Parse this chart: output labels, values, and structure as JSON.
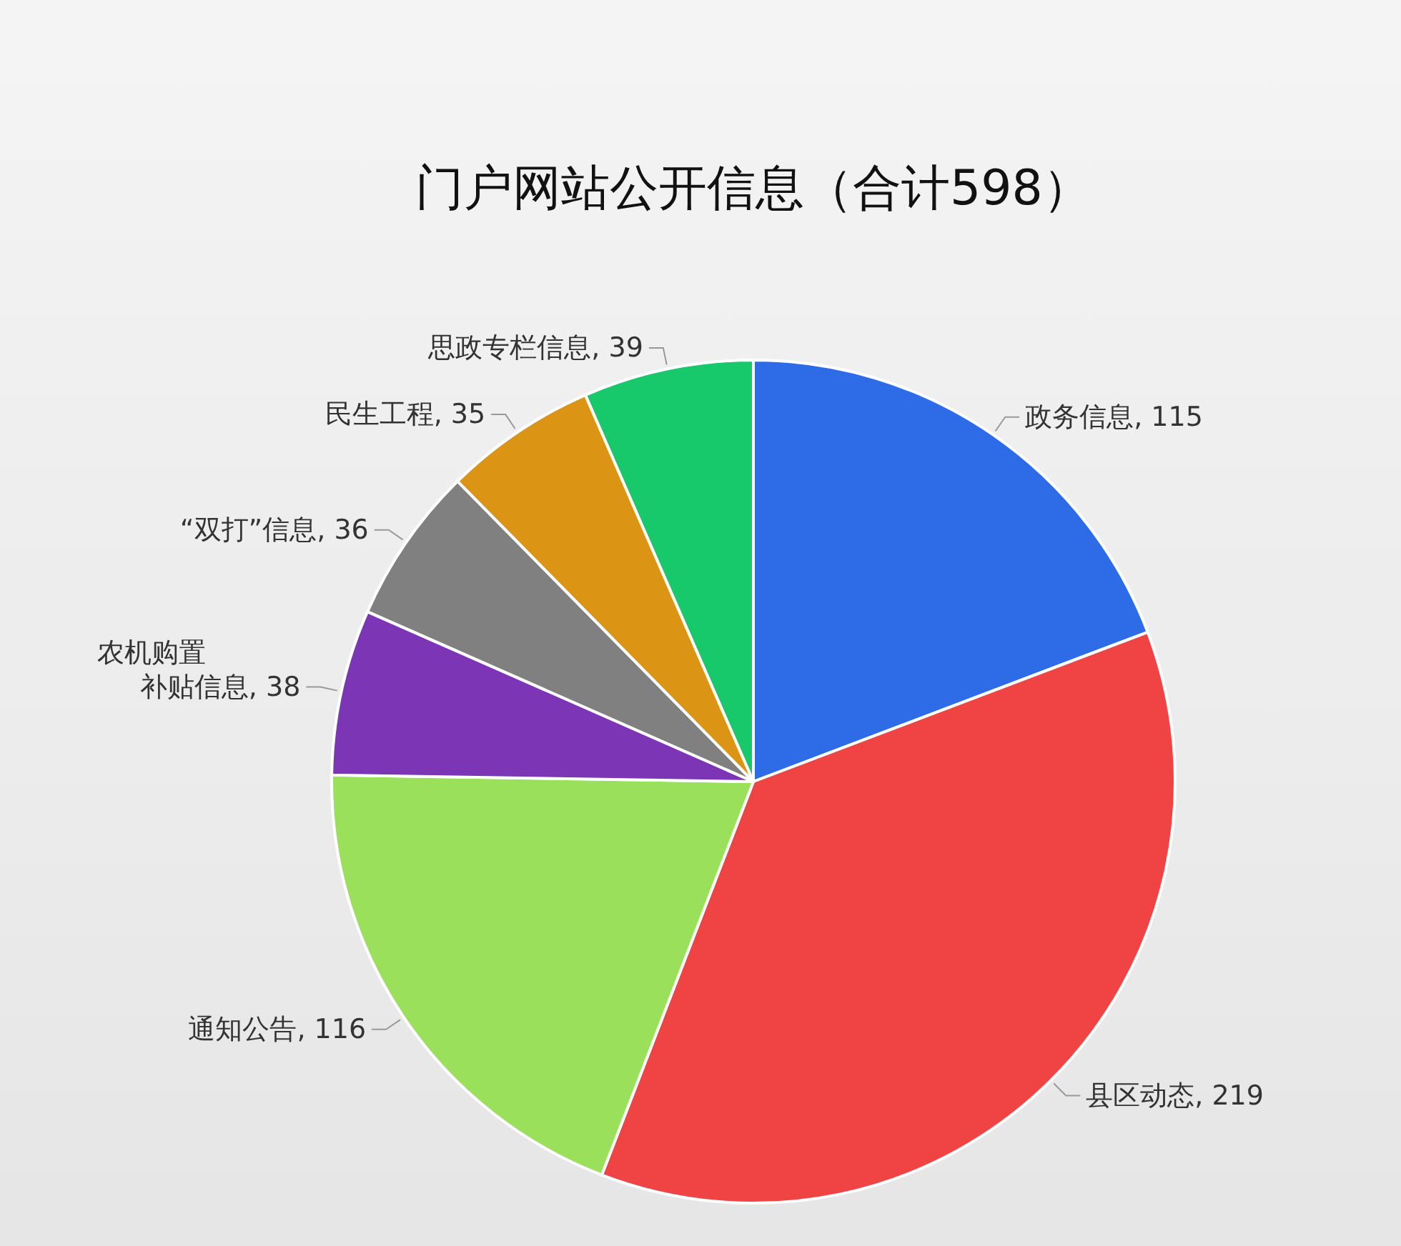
{
  "chart_data": {
    "type": "pie",
    "title": "门户网站公开信息（合计598）",
    "categories": [
      "政务信息",
      "县区动态",
      "通知公告",
      "农机购置补贴信息",
      "“双打”信息",
      "民生工程",
      "思政专栏信息"
    ],
    "values": [
      115,
      219,
      116,
      38,
      36,
      35,
      39
    ],
    "colors": [
      "#2e6be6",
      "#f04444",
      "#9be05a",
      "#7b35b5",
      "#808080",
      "#dc9414",
      "#17c96a"
    ],
    "value_labels": [
      ", 115",
      ", 219",
      ", 116",
      ", 38",
      ", 36",
      ", 35",
      ", 39"
    ]
  }
}
